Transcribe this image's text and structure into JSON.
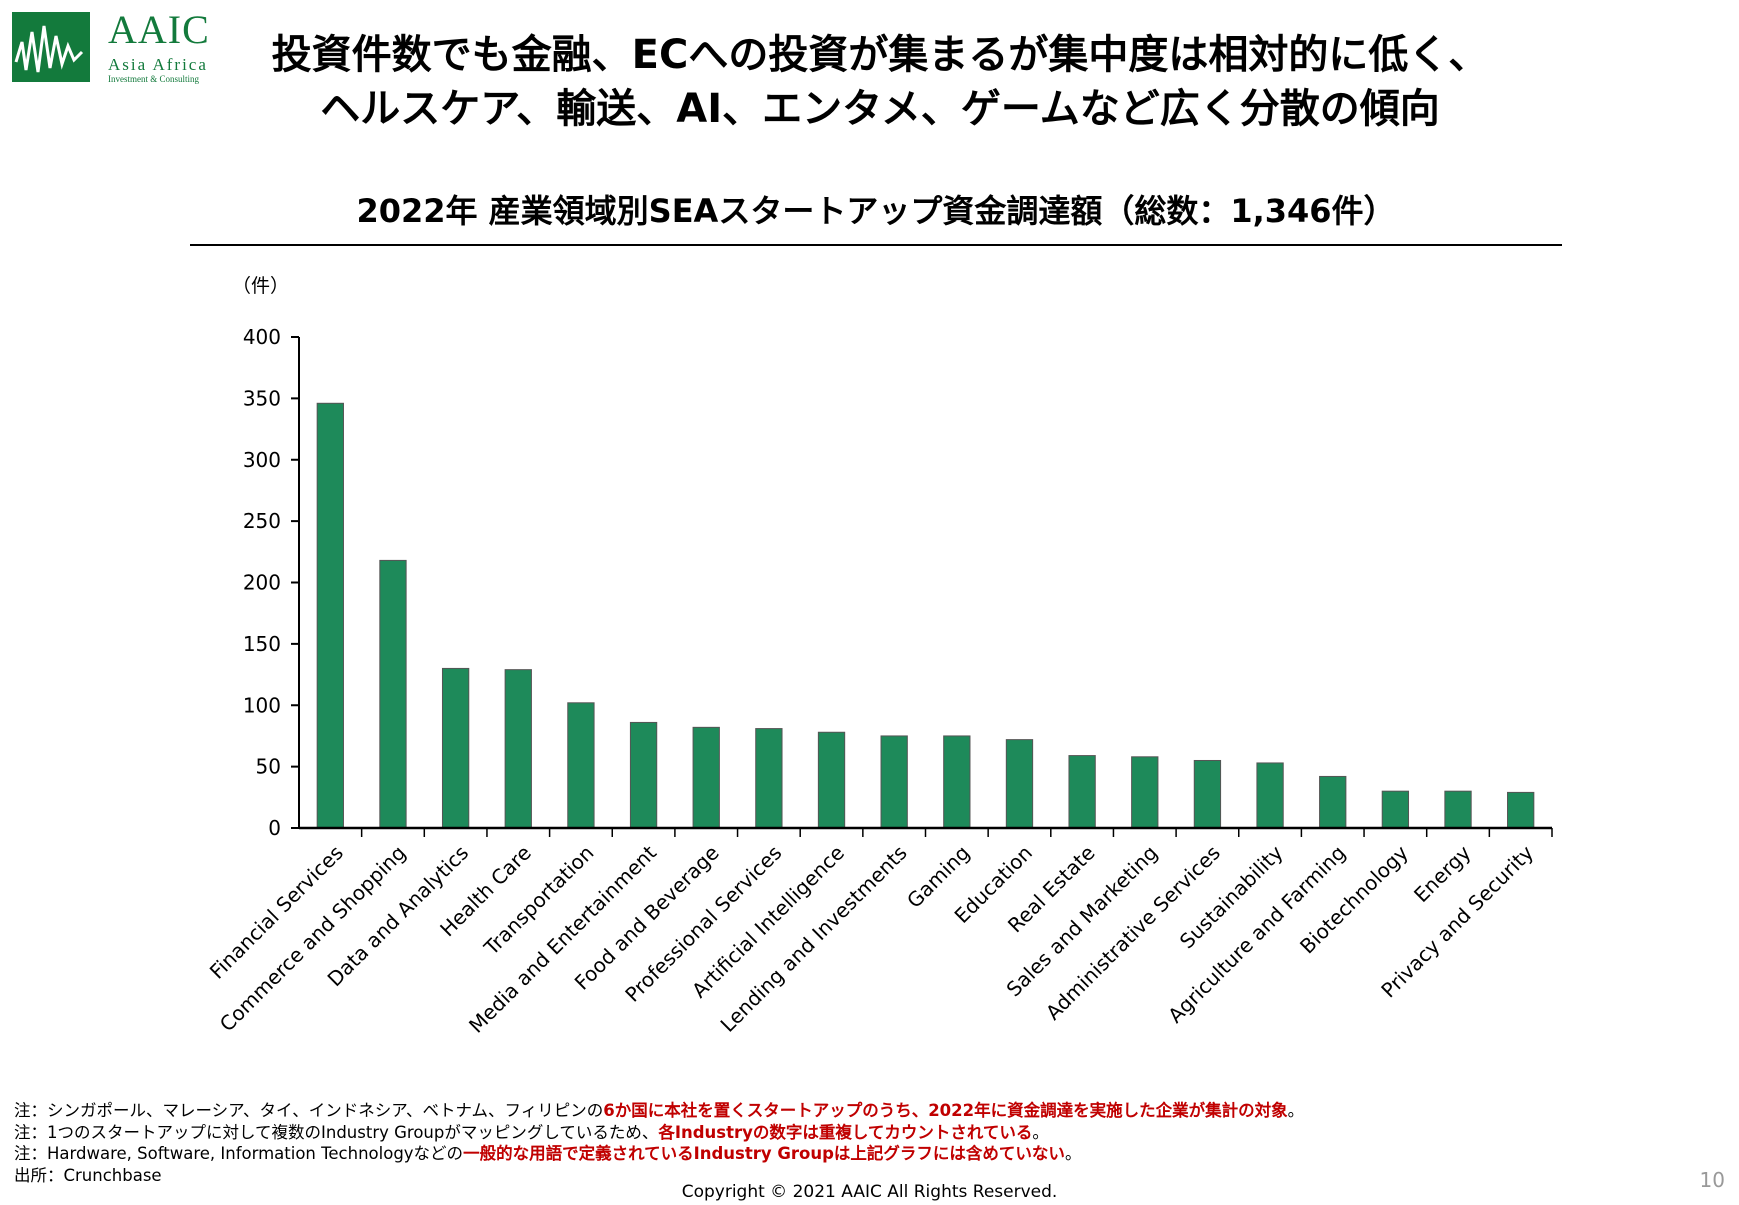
{
  "logo": {
    "name": "AAIC",
    "sub": "Asia Africa",
    "sub2": "Investment & Consulting",
    "color": "#137a3c"
  },
  "title": {
    "line1": "投資件数でも金融、ECへの投資が集まるが集中度は相対的に低く、",
    "line2": "ヘルスケア、輸送、AI、エンタメ、ゲームなど広く分散の傾向"
  },
  "chart_data": {
    "type": "bar",
    "title": "2022年 産業領域別SEAスタートアップ資金調達額（総数：1,346件）",
    "ylabel": "（件）",
    "xlabel": "",
    "ylim": [
      0,
      400
    ],
    "yticks": [
      0,
      50,
      100,
      150,
      200,
      250,
      300,
      350,
      400
    ],
    "grid": false,
    "bar_color": "#1e8a5a",
    "categories": [
      "Financial Services",
      "Commerce and Shopping",
      "Data and Analytics",
      "Health Care",
      "Transportation",
      "Media and Entertainment",
      "Food and Beverage",
      "Professional Services",
      "Artificial Intelligence",
      "Lending and Investments",
      "Gaming",
      "Education",
      "Real Estate",
      "Sales and Marketing",
      "Administrative Services",
      "Sustainability",
      "Agriculture and Farming",
      "Biotechnology",
      "Energy",
      "Privacy and Security"
    ],
    "values": [
      346,
      218,
      130,
      129,
      102,
      86,
      82,
      81,
      78,
      75,
      75,
      72,
      59,
      58,
      55,
      53,
      42,
      30,
      30,
      29
    ]
  },
  "notes": [
    {
      "plain": "注：シンガポール、マレーシア、タイ、インドネシア、ベトナム、フィリピンの",
      "red": "6か国に本社を置くスタートアップのうち、2022年に資金調達を実施した企業が集計の対象",
      "tail": "。"
    },
    {
      "plain": "注：1つのスタートアップに対して複数のIndustry Groupがマッピングしているため、",
      "red": "各Industryの数字は重複してカウントされている",
      "tail": "。"
    },
    {
      "plain": "注：Hardware, Software, Information Technologyなどの",
      "red": "一般的な用語で定義されているIndustry Groupは上記グラフには含めていない",
      "tail": "。"
    },
    {
      "plain": "出所：Crunchbase",
      "red": "",
      "tail": ""
    }
  ],
  "footer": {
    "copyright": "Copyright © 2021 AAIC All Rights Reserved.",
    "page": "10"
  }
}
